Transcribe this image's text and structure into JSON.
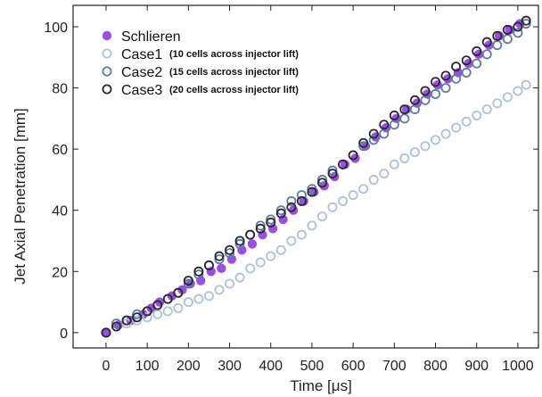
{
  "chart_data": {
    "type": "scatter",
    "xlabel": "Time   [μs]",
    "ylabel": "Jet Axial Penetration   [mm]",
    "xlim": [
      -80,
      1050
    ],
    "ylim": [
      -5,
      107
    ],
    "xticks": [
      0,
      100,
      200,
      300,
      400,
      500,
      600,
      700,
      800,
      900,
      1000
    ],
    "yticks": [
      0,
      20,
      40,
      60,
      80,
      100
    ],
    "legend_position": "top-left",
    "grid": false,
    "series": [
      {
        "name": "Schlieren",
        "note": "",
        "marker": "filled-circle",
        "color": "#9b4de8",
        "points": [
          [
            0,
            0
          ],
          [
            30,
            2.5
          ],
          [
            60,
            4
          ],
          [
            90,
            6
          ],
          [
            110,
            8
          ],
          [
            130,
            10
          ],
          [
            160,
            12
          ],
          [
            185,
            14
          ],
          [
            205,
            16
          ],
          [
            230,
            17
          ],
          [
            255,
            20
          ],
          [
            280,
            21
          ],
          [
            305,
            24
          ],
          [
            330,
            27
          ],
          [
            355,
            29
          ],
          [
            380,
            32
          ],
          [
            405,
            34
          ],
          [
            430,
            37
          ],
          [
            455,
            40
          ],
          [
            480,
            43
          ],
          [
            505,
            46
          ],
          [
            530,
            48
          ],
          [
            555,
            51
          ],
          [
            580,
            55
          ],
          [
            605,
            57
          ],
          [
            630,
            61
          ],
          [
            655,
            64
          ],
          [
            680,
            67
          ],
          [
            705,
            70
          ],
          [
            730,
            73
          ],
          [
            755,
            75
          ],
          [
            780,
            78
          ],
          [
            805,
            81
          ],
          [
            830,
            83
          ],
          [
            855,
            85
          ],
          [
            880,
            88
          ],
          [
            905,
            91
          ],
          [
            930,
            94
          ],
          [
            955,
            97
          ],
          [
            980,
            99
          ],
          [
            1005,
            101
          ]
        ]
      },
      {
        "name": "Case1",
        "note": "(10 cells across injector lift)",
        "marker": "open-circle",
        "color": "#aec0dc",
        "points": [
          [
            0,
            0
          ],
          [
            25,
            2
          ],
          [
            50,
            3
          ],
          [
            75,
            4
          ],
          [
            100,
            5
          ],
          [
            125,
            6
          ],
          [
            150,
            7
          ],
          [
            175,
            8
          ],
          [
            200,
            10
          ],
          [
            225,
            11
          ],
          [
            250,
            12
          ],
          [
            275,
            14
          ],
          [
            300,
            16
          ],
          [
            325,
            18
          ],
          [
            350,
            21
          ],
          [
            375,
            23
          ],
          [
            400,
            25
          ],
          [
            425,
            27
          ],
          [
            450,
            30
          ],
          [
            475,
            32
          ],
          [
            500,
            35
          ],
          [
            525,
            38
          ],
          [
            550,
            41
          ],
          [
            575,
            43
          ],
          [
            600,
            45
          ],
          [
            625,
            47
          ],
          [
            650,
            50
          ],
          [
            675,
            52
          ],
          [
            700,
            55
          ],
          [
            725,
            57
          ],
          [
            750,
            59
          ],
          [
            775,
            61
          ],
          [
            800,
            63
          ],
          [
            825,
            65
          ],
          [
            850,
            67
          ],
          [
            875,
            69
          ],
          [
            900,
            71
          ],
          [
            925,
            73
          ],
          [
            950,
            75
          ],
          [
            975,
            77
          ],
          [
            1000,
            79
          ],
          [
            1020,
            81
          ]
        ]
      },
      {
        "name": "Case2",
        "note": "(15 cells across injector lift)",
        "marker": "open-circle",
        "color": "#5a7ca6",
        "points": [
          [
            0,
            0
          ],
          [
            25,
            3
          ],
          [
            50,
            4
          ],
          [
            75,
            6
          ],
          [
            100,
            7
          ],
          [
            125,
            9
          ],
          [
            150,
            11
          ],
          [
            175,
            13
          ],
          [
            200,
            16
          ],
          [
            225,
            19
          ],
          [
            250,
            22
          ],
          [
            275,
            24
          ],
          [
            300,
            26
          ],
          [
            325,
            29
          ],
          [
            350,
            32
          ],
          [
            375,
            35
          ],
          [
            400,
            37
          ],
          [
            425,
            40
          ],
          [
            450,
            43
          ],
          [
            475,
            45
          ],
          [
            500,
            47
          ],
          [
            525,
            50
          ],
          [
            550,
            53
          ],
          [
            575,
            55
          ],
          [
            600,
            58
          ],
          [
            625,
            61
          ],
          [
            650,
            63
          ],
          [
            675,
            65
          ],
          [
            700,
            68
          ],
          [
            725,
            70
          ],
          [
            750,
            73
          ],
          [
            775,
            76
          ],
          [
            800,
            78
          ],
          [
            825,
            80
          ],
          [
            850,
            83
          ],
          [
            875,
            85
          ],
          [
            900,
            88
          ],
          [
            925,
            91
          ],
          [
            950,
            94
          ],
          [
            975,
            96
          ],
          [
            1000,
            98
          ],
          [
            1020,
            101
          ]
        ]
      },
      {
        "name": "Case3",
        "note": "(20 cells across injector lift)",
        "marker": "open-circle",
        "color": "#2a2a2a",
        "points": [
          [
            0,
            0
          ],
          [
            25,
            2
          ],
          [
            50,
            4
          ],
          [
            75,
            5
          ],
          [
            100,
            7
          ],
          [
            125,
            9
          ],
          [
            150,
            11
          ],
          [
            175,
            13
          ],
          [
            200,
            17
          ],
          [
            225,
            20
          ],
          [
            250,
            22
          ],
          [
            275,
            25
          ],
          [
            300,
            27
          ],
          [
            325,
            30
          ],
          [
            350,
            32
          ],
          [
            375,
            34
          ],
          [
            400,
            36
          ],
          [
            425,
            39
          ],
          [
            450,
            41
          ],
          [
            475,
            43
          ],
          [
            500,
            46
          ],
          [
            525,
            49
          ],
          [
            550,
            52
          ],
          [
            575,
            55
          ],
          [
            600,
            58
          ],
          [
            625,
            62
          ],
          [
            650,
            65
          ],
          [
            675,
            68
          ],
          [
            700,
            71
          ],
          [
            725,
            73
          ],
          [
            750,
            76
          ],
          [
            775,
            79
          ],
          [
            800,
            82
          ],
          [
            825,
            84
          ],
          [
            850,
            87
          ],
          [
            875,
            89
          ],
          [
            900,
            92
          ],
          [
            925,
            95
          ],
          [
            950,
            97
          ],
          [
            975,
            99
          ],
          [
            1000,
            100
          ],
          [
            1020,
            102
          ]
        ]
      }
    ]
  }
}
